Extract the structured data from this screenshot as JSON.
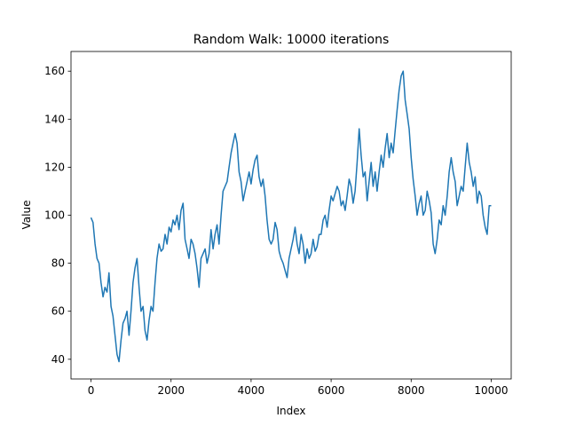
{
  "chart_data": {
    "type": "line",
    "title": "Random Walk: 10000 iterations",
    "xlabel": "Index",
    "ylabel": "Value",
    "xlim": [
      -500,
      10500
    ],
    "ylim": [
      31.8,
      168.2
    ],
    "xticks": [
      0,
      2000,
      4000,
      6000,
      8000,
      10000
    ],
    "yticks": [
      40,
      60,
      80,
      100,
      120,
      140,
      160
    ],
    "grid": false,
    "line_color": "#1f77b4",
    "series": [
      {
        "x": [
          0,
          50,
          100,
          150,
          200,
          250,
          300,
          350,
          400,
          450,
          500,
          550,
          600,
          650,
          700,
          750,
          800,
          850,
          900,
          950,
          1000,
          1050,
          1100,
          1150,
          1200,
          1250,
          1300,
          1350,
          1400,
          1450,
          1500,
          1550,
          1600,
          1650,
          1700,
          1750,
          1800,
          1850,
          1900,
          1950,
          2000,
          2050,
          2100,
          2150,
          2200,
          2250,
          2300,
          2350,
          2400,
          2450,
          2500,
          2550,
          2600,
          2650,
          2700,
          2750,
          2800,
          2850,
          2900,
          2950,
          3000,
          3050,
          3100,
          3150,
          3200,
          3250,
          3300,
          3350,
          3400,
          3450,
          3500,
          3550,
          3600,
          3650,
          3700,
          3750,
          3800,
          3850,
          3900,
          3950,
          4000,
          4050,
          4100,
          4150,
          4200,
          4250,
          4300,
          4350,
          4400,
          4450,
          4500,
          4550,
          4600,
          4650,
          4700,
          4750,
          4800,
          4850,
          4900,
          4950,
          5000,
          5050,
          5100,
          5150,
          5200,
          5250,
          5300,
          5350,
          5400,
          5450,
          5500,
          5550,
          5600,
          5650,
          5700,
          5750,
          5800,
          5850,
          5900,
          5950,
          6000,
          6050,
          6100,
          6150,
          6200,
          6250,
          6300,
          6350,
          6400,
          6450,
          6500,
          6550,
          6600,
          6650,
          6700,
          6750,
          6800,
          6850,
          6900,
          6950,
          7000,
          7050,
          7100,
          7150,
          7200,
          7250,
          7300,
          7350,
          7400,
          7450,
          7500,
          7550,
          7600,
          7650,
          7700,
          7750,
          7800,
          7850,
          7900,
          7950,
          8000,
          8050,
          8100,
          8150,
          8200,
          8250,
          8300,
          8350,
          8400,
          8450,
          8500,
          8550,
          8600,
          8650,
          8700,
          8750,
          8800,
          8850,
          8900,
          8950,
          9000,
          9050,
          9100,
          9150,
          9200,
          9250,
          9300,
          9350,
          9400,
          9450,
          9500,
          9550,
          9600,
          9650,
          9700,
          9750,
          9800,
          9850,
          9900,
          9950,
          10000
        ],
        "values": [
          99,
          97,
          88,
          82,
          80,
          72,
          66,
          70,
          68,
          76,
          62,
          58,
          50,
          42,
          39,
          48,
          55,
          57,
          60,
          50,
          60,
          72,
          78,
          82,
          70,
          60,
          62,
          52,
          48,
          56,
          62,
          60,
          72,
          82,
          88,
          85,
          86,
          92,
          88,
          95,
          93,
          98,
          96,
          100,
          94,
          102,
          105,
          90,
          86,
          82,
          90,
          88,
          84,
          78,
          70,
          82,
          84,
          86,
          80,
          84,
          94,
          86,
          92,
          96,
          88,
          100,
          110,
          112,
          114,
          120,
          126,
          130,
          134,
          130,
          118,
          114,
          106,
          110,
          114,
          118,
          113,
          119,
          123,
          125,
          116,
          112,
          115,
          108,
          98,
          90,
          88,
          90,
          97,
          94,
          85,
          82,
          80,
          77,
          74,
          82,
          86,
          90,
          95,
          88,
          84,
          92,
          88,
          80,
          86,
          82,
          84,
          90,
          85,
          87,
          92,
          92,
          98,
          100,
          95,
          102,
          108,
          106,
          109,
          112,
          110,
          104,
          106,
          102,
          108,
          115,
          112,
          105,
          110,
          122,
          136,
          125,
          116,
          118,
          106,
          114,
          122,
          112,
          118,
          110,
          118,
          125,
          120,
          128,
          134,
          124,
          130,
          126,
          135,
          144,
          152,
          158,
          160,
          148,
          142,
          136,
          124,
          115,
          108,
          100,
          105,
          108,
          100,
          102,
          110,
          106,
          101,
          88,
          84,
          90,
          98,
          96,
          104,
          100,
          108,
          118,
          124,
          118,
          114,
          104,
          108,
          112,
          110,
          120,
          130,
          122,
          118,
          112,
          116,
          105,
          110,
          108,
          100,
          95,
          92,
          104,
          104
        ]
      }
    ]
  }
}
